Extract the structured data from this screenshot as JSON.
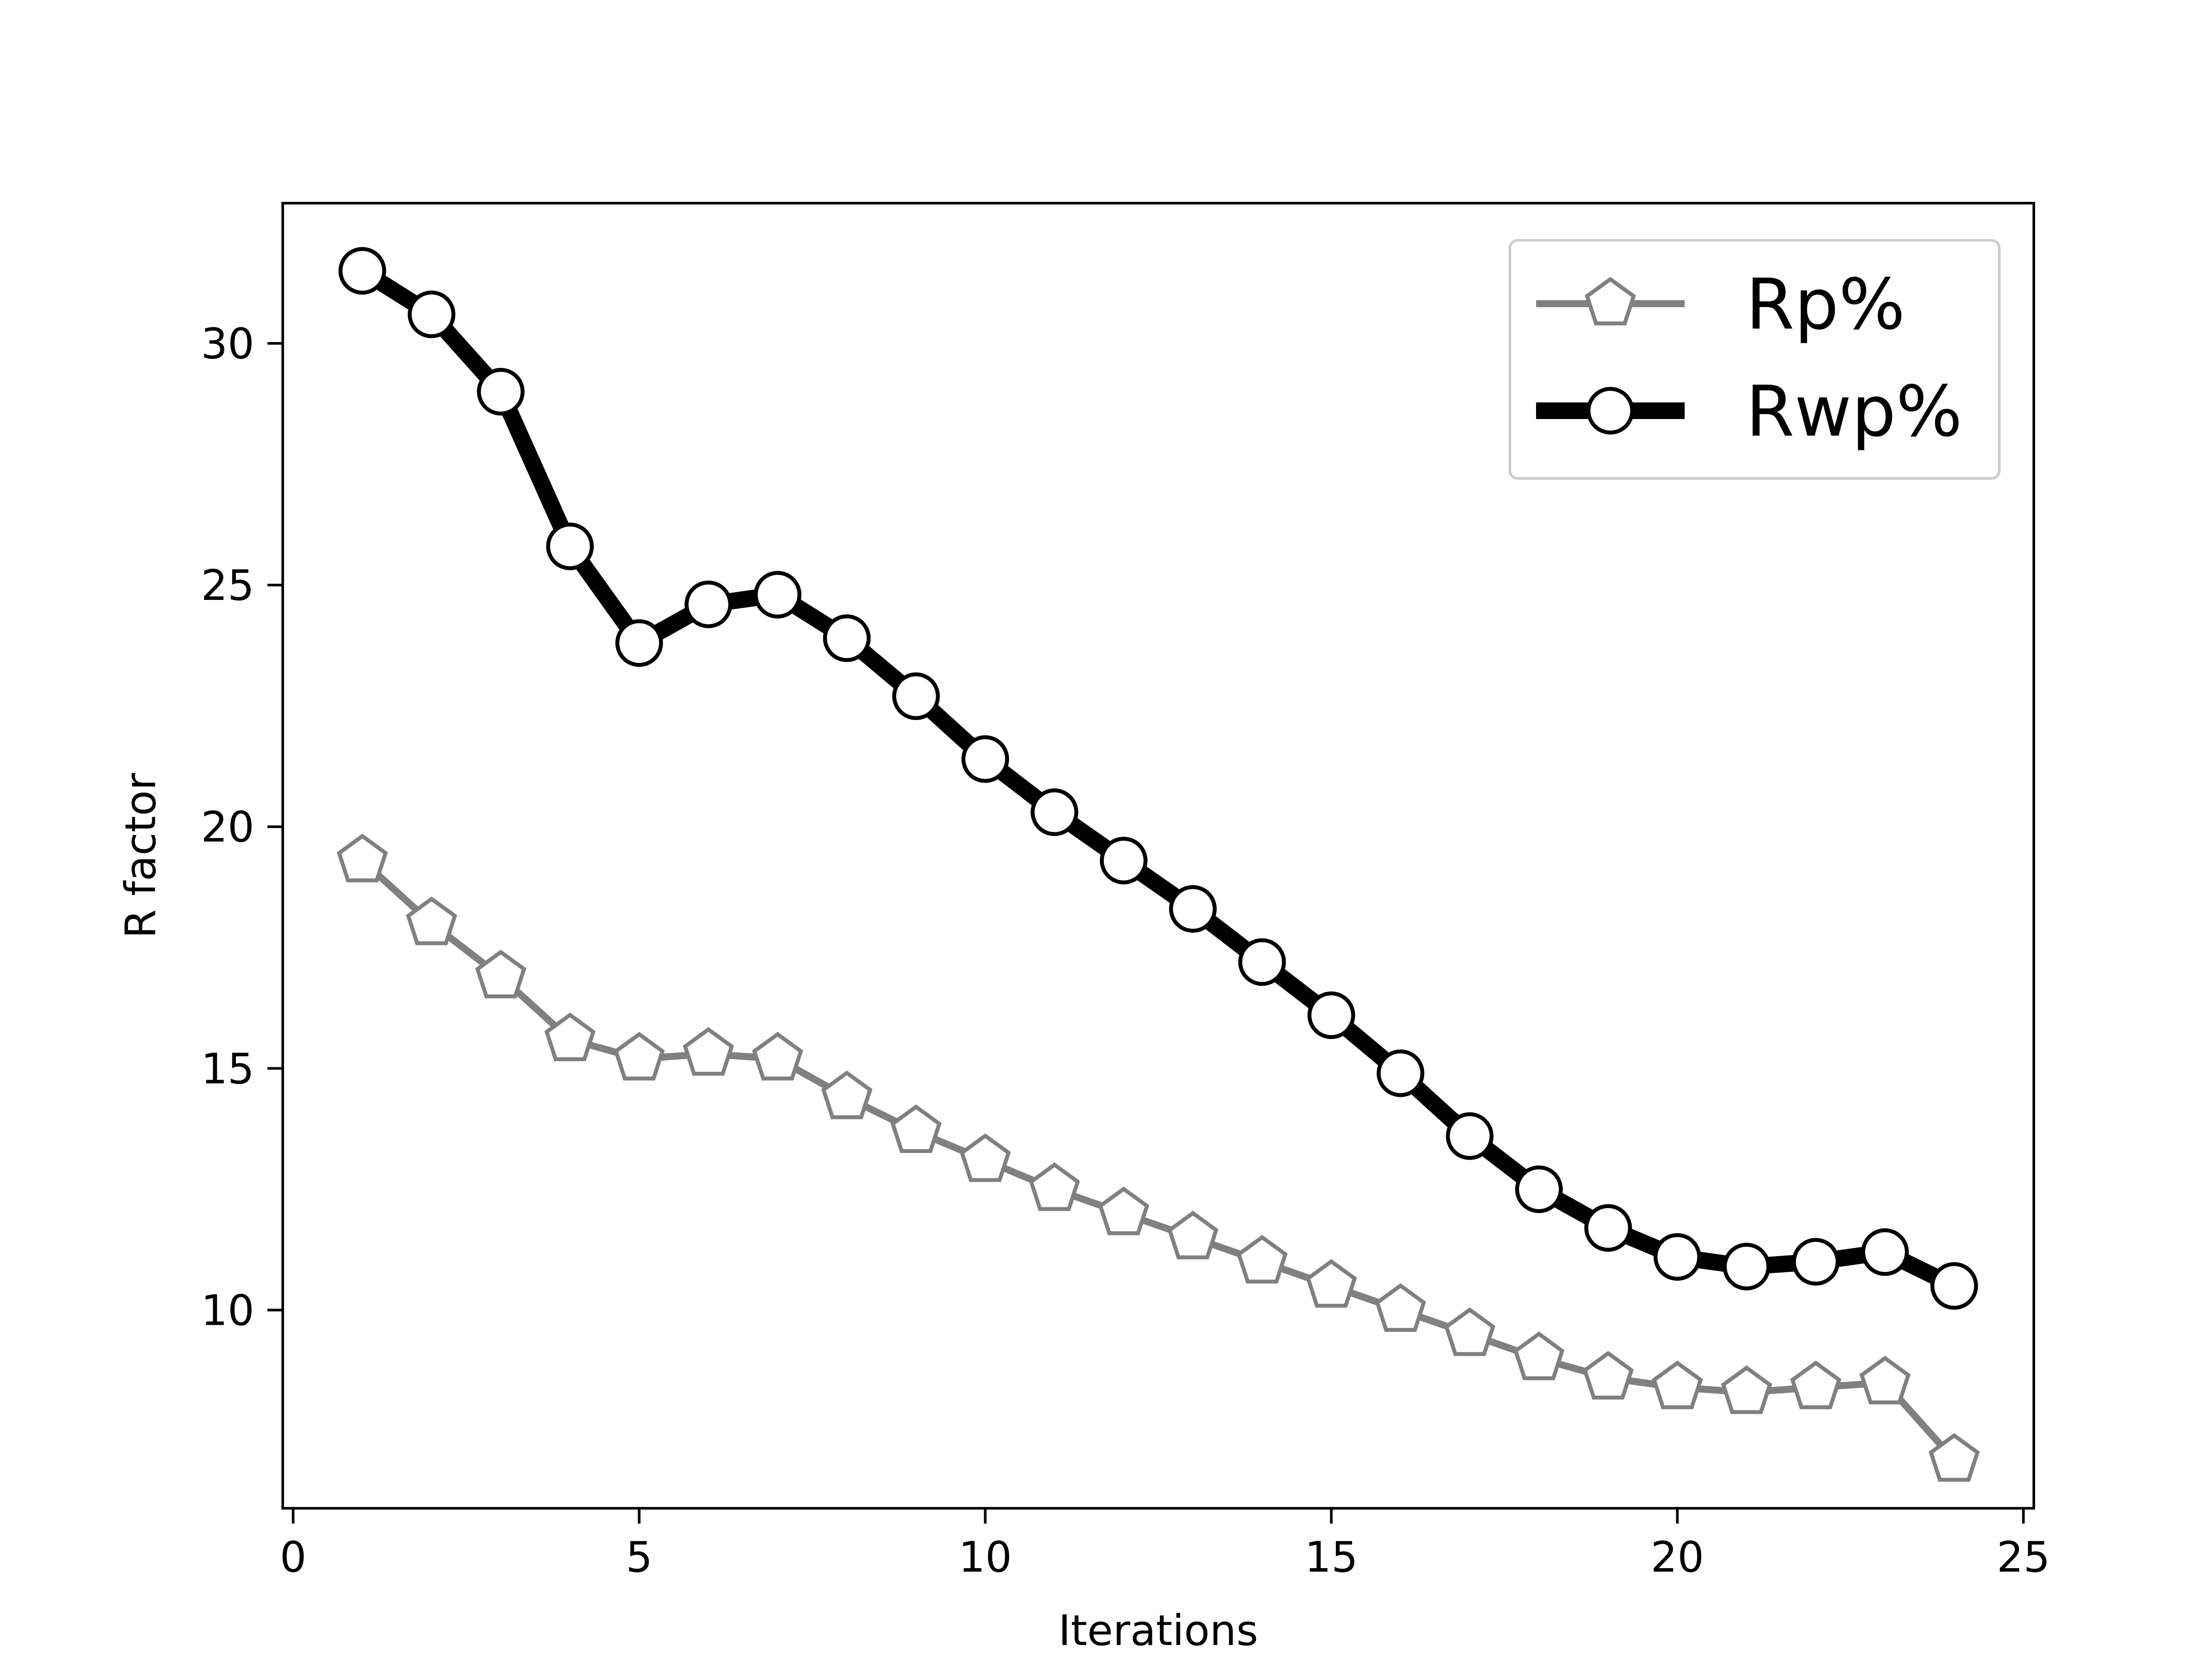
{
  "chart_data": {
    "type": "line",
    "title": "",
    "xlabel": "Iterations",
    "ylabel": "R factor",
    "xlim": [
      -0.15,
      25.15
    ],
    "ylim": [
      5.9,
      32.9
    ],
    "x_ticks": [
      0,
      5,
      10,
      15,
      20,
      25
    ],
    "y_ticks": [
      10,
      15,
      20,
      25,
      30
    ],
    "x_tick_labels": [
      "0",
      "5",
      "10",
      "15",
      "20",
      "25"
    ],
    "y_tick_labels": [
      "10",
      "15",
      "20",
      "25",
      "30"
    ],
    "grid": false,
    "legend_position": "top-right",
    "x": [
      1,
      2,
      3,
      4,
      5,
      6,
      7,
      8,
      9,
      10,
      11,
      12,
      13,
      14,
      15,
      16,
      17,
      18,
      19,
      20,
      21,
      22,
      23,
      24
    ],
    "series": [
      {
        "name": "Rp%",
        "marker": "pentagon",
        "color": "#808080",
        "values": [
          19.3,
          18.0,
          16.9,
          15.6,
          15.2,
          15.3,
          15.2,
          14.4,
          13.7,
          13.1,
          12.5,
          12.0,
          11.5,
          11.0,
          10.5,
          10.0,
          9.5,
          9.0,
          8.6,
          8.4,
          8.3,
          8.4,
          8.5,
          6.9
        ]
      },
      {
        "name": "Rwp%",
        "marker": "circle",
        "color": "#000000",
        "values": [
          31.5,
          30.6,
          29.0,
          25.8,
          23.8,
          24.6,
          24.8,
          23.9,
          22.7,
          21.4,
          20.3,
          19.3,
          18.3,
          17.2,
          16.1,
          14.9,
          13.6,
          12.5,
          11.7,
          11.1,
          10.9,
          11.0,
          11.2,
          10.5
        ]
      }
    ]
  }
}
